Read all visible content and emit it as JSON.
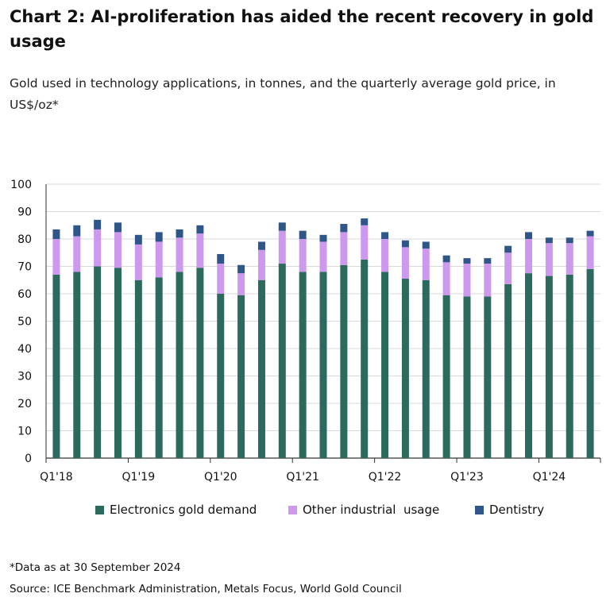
{
  "title": "Chart 2:  AI-proliferation has aided the recent recovery in gold usage",
  "subtitle": "Gold used in technology applications, in tonnes, and the quarterly average gold price, in US$/oz*",
  "footnote": "*Data as at 30 September 2024",
  "source": "Source: ICE Benchmark Administration, Metals Focus, World Gold Council",
  "colors": {
    "electronics": "#2b6a5c",
    "other": "#cc99ee",
    "dentistry": "#2f5689",
    "grid": "#d9d9d9",
    "axis": "#333333"
  },
  "legend": [
    {
      "key": "electronics",
      "label": "Electronics gold demand"
    },
    {
      "key": "other",
      "label": "Other industrial  usage"
    },
    {
      "key": "dentistry",
      "label": "Dentistry"
    }
  ],
  "chart_data": {
    "type": "bar",
    "stacked": true,
    "grid": true,
    "legend_position": "bottom",
    "ylim": [
      0,
      100
    ],
    "yticks": [
      0,
      10,
      20,
      30,
      40,
      50,
      60,
      70,
      80,
      90,
      100
    ],
    "categories": [
      "Q1'18",
      "Q2'18",
      "Q3'18",
      "Q4'18",
      "Q1'19",
      "Q2'19",
      "Q3'19",
      "Q4'19",
      "Q1'20",
      "Q2'20",
      "Q3'20",
      "Q4'20",
      "Q1'21",
      "Q2'21",
      "Q3'21",
      "Q4'21",
      "Q1'22",
      "Q2'22",
      "Q3'22",
      "Q4'22",
      "Q1'23",
      "Q2'23",
      "Q3'23",
      "Q4'23",
      "Q1'24",
      "Q2'24",
      "Q3'24"
    ],
    "xtick_labels": [
      "Q1'18",
      "",
      "",
      "",
      "Q1'19",
      "",
      "",
      "",
      "Q1'20",
      "",
      "",
      "",
      "Q1'21",
      "",
      "",
      "",
      "Q1'22",
      "",
      "",
      "",
      "Q1'23",
      "",
      "",
      "",
      "Q1'24",
      "",
      ""
    ],
    "series": [
      {
        "name": "Electronics gold demand",
        "color_key": "electronics",
        "values": [
          67,
          68,
          70,
          69.5,
          65,
          66,
          68,
          69.5,
          60,
          59.5,
          65,
          71,
          68,
          68,
          70.5,
          72.5,
          68,
          65.5,
          65,
          59.5,
          59,
          59,
          63.5,
          67.5,
          66.5,
          67,
          69
        ]
      },
      {
        "name": "Other industrial  usage",
        "color_key": "other",
        "values": [
          13,
          13,
          13.5,
          13,
          13,
          13,
          12.5,
          12.5,
          11,
          8,
          11,
          12,
          12,
          11,
          12,
          12.5,
          12,
          11.5,
          11.5,
          12,
          12,
          12,
          11.5,
          12.5,
          12,
          11.5,
          12
        ]
      },
      {
        "name": "Dentistry",
        "color_key": "dentistry",
        "values": [
          3.5,
          4,
          3.5,
          3.5,
          3.5,
          3.5,
          3,
          3,
          3.5,
          3,
          3,
          3,
          3,
          2.5,
          3,
          2.5,
          2.5,
          2.5,
          2.5,
          2.5,
          2,
          2,
          2.5,
          2.5,
          2,
          2,
          2
        ]
      }
    ]
  }
}
